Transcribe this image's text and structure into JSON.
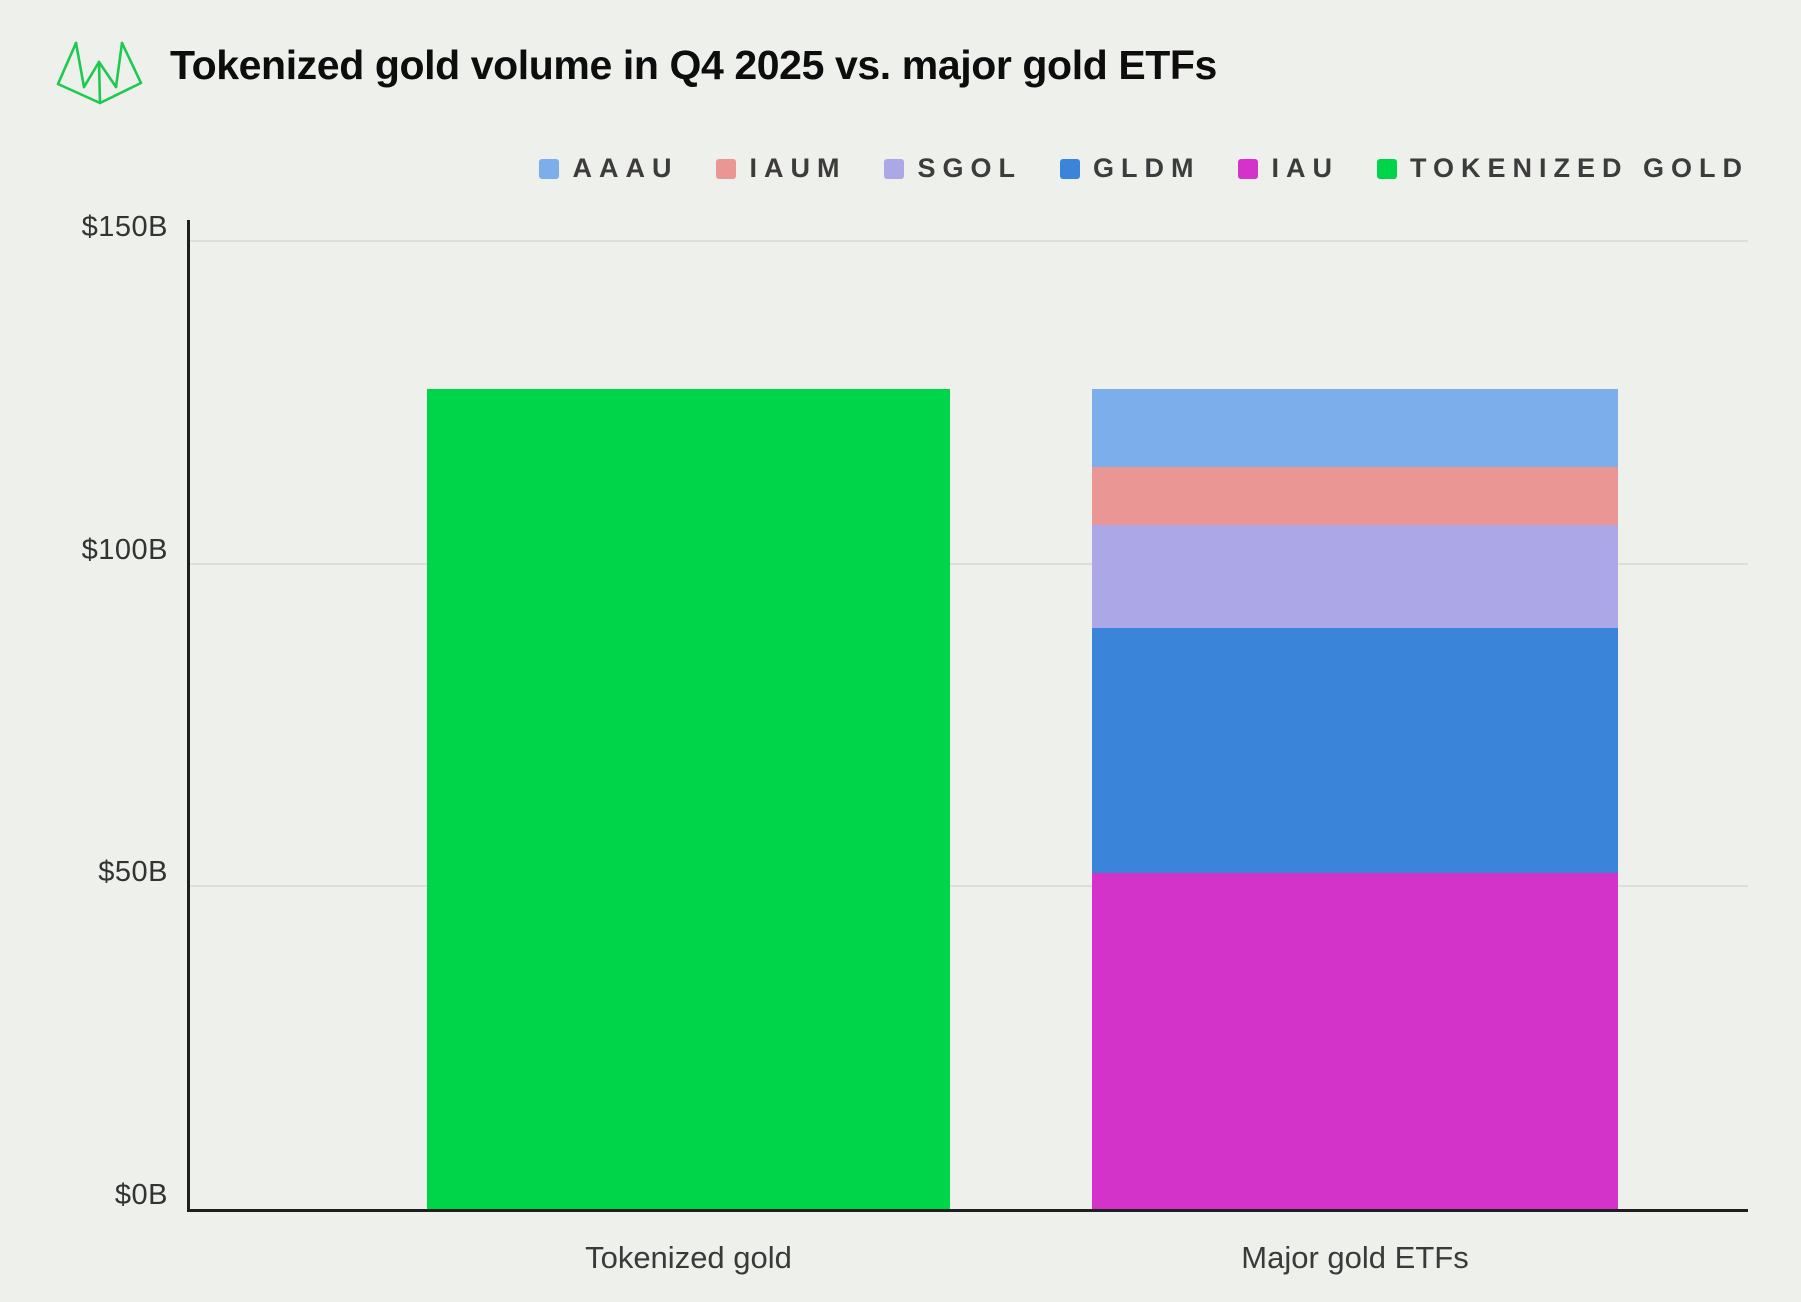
{
  "header": {
    "logo_name": "rwa-logo",
    "title": "Tokenized gold volume in Q4 2025 vs. major gold ETFs"
  },
  "colors": {
    "background": "#EEF0EB",
    "axis": "#1F1F1F",
    "gridline": "#DCDED7",
    "title_text": "#0D0D0D",
    "tick_text": "#333333",
    "legend_text": "#3C3C3C",
    "logo_green": "#1DC94F"
  },
  "chart_data": {
    "type": "bar",
    "stacked": true,
    "title": "Tokenized gold volume in Q4 2025 vs. major gold ETFs",
    "unit": "USD billions",
    "categories": [
      "Tokenized gold",
      "Major gold ETFs"
    ],
    "series": [
      {
        "name": "AAAU",
        "color": "#7BAEEA",
        "values": [
          0,
          12
        ]
      },
      {
        "name": "IAUM",
        "color": "#E99694",
        "values": [
          0,
          9
        ]
      },
      {
        "name": "SGOL",
        "color": "#ACA7E7",
        "values": [
          0,
          16
        ]
      },
      {
        "name": "GLDM",
        "color": "#3A85D9",
        "values": [
          0,
          38
        ]
      },
      {
        "name": "IAU",
        "color": "#D433C9",
        "values": [
          0,
          52
        ]
      },
      {
        "name": "TOKENIZED GOLD",
        "color": "#00D54A",
        "values": [
          127,
          0
        ]
      }
    ],
    "stack_order_bottom_to_top": [
      "IAU",
      "GLDM",
      "SGOL",
      "IAUM",
      "AAAU",
      "TOKENIZED GOLD"
    ],
    "totals": {
      "Tokenized gold": 127,
      "Major gold ETFs": 127
    },
    "ylim": [
      0,
      150
    ],
    "yticks": [
      {
        "label": "$0B",
        "value": 0
      },
      {
        "label": "$50B",
        "value": 50
      },
      {
        "label": "$100B",
        "value": 100
      },
      {
        "label": "$150B",
        "value": 150
      }
    ],
    "xlabel": "",
    "ylabel": "",
    "grid": "horizontal",
    "legend_position": "top-right"
  }
}
